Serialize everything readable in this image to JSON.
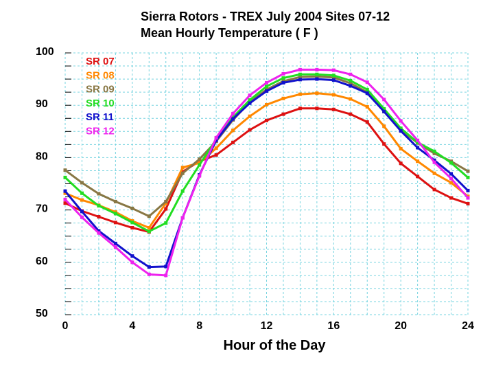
{
  "chart_data": {
    "type": "line",
    "title": "Sierra Rotors - TREX  July 2004  Sites 07-12",
    "subtitle": "Mean Hourly Temperature ( F )",
    "xlabel": "Hour of the Day",
    "ylabel": "",
    "xlim": [
      0,
      24
    ],
    "ylim": [
      50,
      100
    ],
    "xticks": [
      0,
      4,
      8,
      12,
      16,
      20,
      24
    ],
    "yticks": [
      50,
      60,
      70,
      80,
      90,
      100
    ],
    "xtick_labels": [
      "0",
      "4",
      "8",
      "12",
      "16",
      "20",
      "24"
    ],
    "ytick_labels": [
      "50",
      "60",
      "70",
      "80",
      "90",
      "100"
    ],
    "grid": true,
    "legend_position": "top-left",
    "x": [
      0,
      1,
      2,
      3,
      4,
      5,
      6,
      7,
      8,
      9,
      10,
      11,
      12,
      13,
      14,
      15,
      16,
      17,
      18,
      19,
      20,
      21,
      22,
      23,
      24
    ],
    "series": [
      {
        "name": "SR 07",
        "color": "#dd1111",
        "values": [
          71.3,
          69.8,
          68.7,
          67.6,
          66.6,
          65.8,
          70.2,
          77.3,
          79.3,
          80.5,
          82.9,
          85.3,
          87.1,
          88.3,
          89.4,
          89.4,
          89.2,
          88.3,
          86.8,
          82.6,
          78.9,
          76.4,
          73.9,
          72.3,
          71.2
        ]
      },
      {
        "name": "SR 08",
        "color": "#ff8800",
        "values": [
          73.2,
          71.9,
          70.9,
          69.6,
          67.9,
          66.6,
          71.3,
          78.1,
          79.0,
          81.8,
          85.2,
          87.9,
          90.1,
          91.3,
          92.1,
          92.3,
          92.0,
          91.2,
          89.7,
          86.0,
          81.7,
          79.3,
          77.0,
          75.2,
          72.6
        ]
      },
      {
        "name": "SR 09",
        "color": "#887744",
        "values": [
          77.6,
          75.2,
          73.1,
          71.6,
          70.3,
          68.8,
          71.6,
          77.0,
          79.7,
          83.1,
          87.2,
          90.6,
          93.0,
          94.6,
          95.4,
          95.5,
          95.3,
          94.2,
          92.5,
          88.8,
          85.3,
          82.8,
          80.8,
          79.3,
          77.4
        ]
      },
      {
        "name": "SR 10",
        "color": "#22dd22",
        "values": [
          76.2,
          73.2,
          70.8,
          69.3,
          67.6,
          65.9,
          67.5,
          73.6,
          78.6,
          83.5,
          87.7,
          91.0,
          93.6,
          95.2,
          95.9,
          95.9,
          95.7,
          94.7,
          93.0,
          89.3,
          85.6,
          82.9,
          81.2,
          79.0,
          76.2
        ]
      },
      {
        "name": "SR 11",
        "color": "#1111cc",
        "values": [
          73.6,
          69.7,
          66.0,
          63.6,
          61.2,
          59.1,
          59.2,
          68.5,
          76.7,
          83.3,
          87.4,
          90.4,
          92.7,
          94.3,
          94.9,
          95.0,
          94.8,
          93.7,
          92.3,
          88.8,
          85.1,
          81.9,
          79.5,
          76.9,
          73.7
        ]
      },
      {
        "name": "SR 12",
        "color": "#ee22ee",
        "values": [
          72.0,
          68.6,
          65.6,
          62.9,
          60.0,
          57.7,
          57.5,
          68.5,
          76.5,
          83.8,
          88.4,
          91.9,
          94.3,
          96.0,
          96.8,
          96.8,
          96.7,
          95.9,
          94.4,
          91.1,
          87.0,
          83.3,
          79.1,
          76.0,
          72.3
        ]
      }
    ]
  }
}
